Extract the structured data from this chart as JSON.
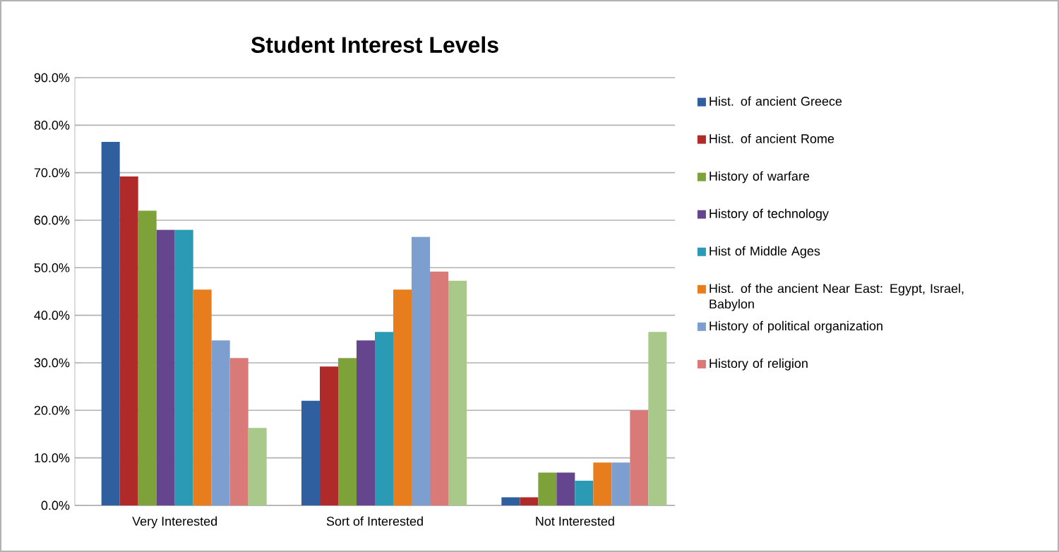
{
  "chart_data": {
    "type": "bar",
    "title": "Student Interest Levels",
    "categories": [
      "Very Interested",
      "Sort of Interested",
      "Not Interested"
    ],
    "series": [
      {
        "name": "Hist. of ancient Greece",
        "color": "#2f5f9e",
        "values": [
          76.5,
          22.0,
          1.7
        ]
      },
      {
        "name": "Hist. of ancient Rome",
        "color": "#b02a2a",
        "values": [
          69.2,
          29.2,
          1.7
        ]
      },
      {
        "name": "History of warfare",
        "color": "#7ea23a",
        "values": [
          62.0,
          31.0,
          6.9
        ]
      },
      {
        "name": "History of technology",
        "color": "#66458f",
        "values": [
          58.0,
          34.7,
          6.9
        ]
      },
      {
        "name": "Hist of Middle Ages",
        "color": "#2b9bb5",
        "values": [
          58.0,
          36.5,
          5.2
        ]
      },
      {
        "name": "Hist. of the ancient Near East: Egypt, Israel, Babylon",
        "color": "#e87d1e",
        "values": [
          45.4,
          45.4,
          9.0
        ]
      },
      {
        "name": "History of political organization",
        "color": "#7d9fd0",
        "values": [
          34.7,
          56.5,
          9.0
        ]
      },
      {
        "name": "History of religion",
        "color": "#d97a79",
        "values": [
          31.0,
          49.2,
          20.0
        ]
      },
      {
        "color": "#a8c98a",
        "values": [
          16.3,
          47.3,
          36.5
        ]
      }
    ],
    "ylim": [
      0,
      90
    ],
    "yticks": [
      {
        "value": 0,
        "label": "0.0%"
      },
      {
        "value": 10,
        "label": "10.0%"
      },
      {
        "value": 20,
        "label": "20.0%"
      },
      {
        "value": 30,
        "label": "30.0%"
      },
      {
        "value": 40,
        "label": "40.0%"
      },
      {
        "value": 50,
        "label": "50.0%"
      },
      {
        "value": 60,
        "label": "60.0%"
      },
      {
        "value": 70,
        "label": "70.0%"
      },
      {
        "value": 80,
        "label": "80.0%"
      },
      {
        "value": 90,
        "label": "90.0%"
      }
    ],
    "grid": "y",
    "legend": "right"
  }
}
